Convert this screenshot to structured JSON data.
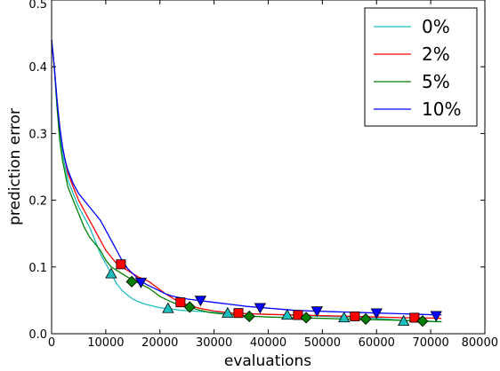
{
  "chart_data": {
    "type": "line",
    "xlabel": "evaluations",
    "ylabel": "prediction error",
    "xlim": [
      0,
      80000
    ],
    "ylim": [
      0.0,
      0.5
    ],
    "x_ticks": [
      0,
      10000,
      20000,
      30000,
      40000,
      50000,
      60000,
      70000,
      80000
    ],
    "x_tick_labels": [
      "0",
      "10000",
      "20000",
      "30000",
      "40000",
      "50000",
      "60000",
      "70000",
      "80000"
    ],
    "y_ticks": [
      0.0,
      0.1,
      0.2,
      0.3,
      0.4,
      0.5
    ],
    "y_tick_labels": [
      "0.0",
      "0.1",
      "0.2",
      "0.3",
      "0.4",
      "0.5"
    ],
    "grid": false,
    "legend_position": "top-right",
    "series": [
      {
        "name": "0%",
        "color": "#1cbfbf",
        "marker": "triangle-up",
        "points": [
          [
            0,
            0.44
          ],
          [
            500,
            0.4
          ],
          [
            1000,
            0.34
          ],
          [
            1500,
            0.3
          ],
          [
            2000,
            0.27
          ],
          [
            2500,
            0.25
          ],
          [
            3000,
            0.23
          ],
          [
            4000,
            0.21
          ],
          [
            5000,
            0.19
          ],
          [
            6000,
            0.175
          ],
          [
            7000,
            0.16
          ],
          [
            8000,
            0.14
          ],
          [
            9000,
            0.12
          ],
          [
            10000,
            0.105
          ],
          [
            11000,
            0.09
          ],
          [
            12000,
            0.075
          ],
          [
            13000,
            0.065
          ],
          [
            14000,
            0.058
          ],
          [
            15000,
            0.052
          ],
          [
            16000,
            0.048
          ],
          [
            17000,
            0.045
          ],
          [
            18000,
            0.043
          ],
          [
            19000,
            0.041
          ],
          [
            20000,
            0.039
          ],
          [
            21000,
            0.038
          ],
          [
            22000,
            0.037
          ],
          [
            24000,
            0.035
          ],
          [
            26000,
            0.034
          ],
          [
            28000,
            0.033
          ],
          [
            30000,
            0.032
          ],
          [
            33000,
            0.031
          ],
          [
            36000,
            0.03
          ],
          [
            40000,
            0.029
          ],
          [
            43000,
            0.028
          ],
          [
            46000,
            0.027
          ],
          [
            50000,
            0.026
          ],
          [
            54000,
            0.025
          ],
          [
            58000,
            0.024
          ],
          [
            62000,
            0.022
          ],
          [
            65000,
            0.02
          ],
          [
            68000,
            0.019
          ],
          [
            71000,
            0.018
          ],
          [
            72000,
            0.018
          ]
        ],
        "markers": [
          [
            11000,
            0.09
          ],
          [
            21500,
            0.038
          ],
          [
            32500,
            0.031
          ],
          [
            43500,
            0.028
          ],
          [
            54000,
            0.024
          ],
          [
            65000,
            0.019
          ]
        ]
      },
      {
        "name": "2%",
        "color": "#ff0000",
        "marker": "square",
        "points": [
          [
            0,
            0.44
          ],
          [
            500,
            0.4
          ],
          [
            1000,
            0.35
          ],
          [
            1500,
            0.31
          ],
          [
            2000,
            0.28
          ],
          [
            2500,
            0.26
          ],
          [
            3000,
            0.24
          ],
          [
            4000,
            0.22
          ],
          [
            5000,
            0.2
          ],
          [
            6000,
            0.185
          ],
          [
            7000,
            0.17
          ],
          [
            8000,
            0.155
          ],
          [
            9000,
            0.14
          ],
          [
            10000,
            0.125
          ],
          [
            11000,
            0.115
          ],
          [
            12000,
            0.105
          ],
          [
            13000,
            0.1
          ],
          [
            14000,
            0.095
          ],
          [
            15000,
            0.09
          ],
          [
            16000,
            0.085
          ],
          [
            17000,
            0.082
          ],
          [
            18000,
            0.078
          ],
          [
            19000,
            0.072
          ],
          [
            20000,
            0.066
          ],
          [
            21000,
            0.06
          ],
          [
            22000,
            0.055
          ],
          [
            23000,
            0.05
          ],
          [
            24000,
            0.046
          ],
          [
            26000,
            0.041
          ],
          [
            28000,
            0.037
          ],
          [
            30000,
            0.034
          ],
          [
            33000,
            0.031
          ],
          [
            36000,
            0.03
          ],
          [
            40000,
            0.029
          ],
          [
            45000,
            0.028
          ],
          [
            50000,
            0.027
          ],
          [
            55000,
            0.026
          ],
          [
            60000,
            0.025
          ],
          [
            65000,
            0.024
          ],
          [
            68000,
            0.024
          ],
          [
            72000,
            0.023
          ]
        ],
        "markers": [
          [
            12800,
            0.104
          ],
          [
            23800,
            0.047
          ],
          [
            34500,
            0.031
          ],
          [
            45500,
            0.028
          ],
          [
            56000,
            0.026
          ],
          [
            67000,
            0.024
          ]
        ]
      },
      {
        "name": "5%",
        "color": "#007f00",
        "marker": "diamond",
        "points": [
          [
            0,
            0.44
          ],
          [
            500,
            0.4
          ],
          [
            1000,
            0.34
          ],
          [
            1500,
            0.29
          ],
          [
            2000,
            0.26
          ],
          [
            2500,
            0.24
          ],
          [
            3000,
            0.22
          ],
          [
            4000,
            0.2
          ],
          [
            5000,
            0.18
          ],
          [
            6000,
            0.16
          ],
          [
            7000,
            0.145
          ],
          [
            8000,
            0.135
          ],
          [
            9000,
            0.125
          ],
          [
            10000,
            0.11
          ],
          [
            11000,
            0.1
          ],
          [
            12000,
            0.095
          ],
          [
            13000,
            0.09
          ],
          [
            14000,
            0.085
          ],
          [
            15000,
            0.08
          ],
          [
            16000,
            0.076
          ],
          [
            17000,
            0.072
          ],
          [
            18000,
            0.068
          ],
          [
            19000,
            0.062
          ],
          [
            20000,
            0.056
          ],
          [
            21000,
            0.052
          ],
          [
            22000,
            0.048
          ],
          [
            23000,
            0.045
          ],
          [
            24000,
            0.043
          ],
          [
            25000,
            0.041
          ],
          [
            27000,
            0.036
          ],
          [
            29000,
            0.032
          ],
          [
            31000,
            0.03
          ],
          [
            34000,
            0.028
          ],
          [
            37000,
            0.026
          ],
          [
            40000,
            0.025
          ],
          [
            45000,
            0.024
          ],
          [
            50000,
            0.023
          ],
          [
            55000,
            0.022
          ],
          [
            60000,
            0.021
          ],
          [
            65000,
            0.02
          ],
          [
            68000,
            0.019
          ],
          [
            72000,
            0.018
          ]
        ],
        "markers": [
          [
            14800,
            0.078
          ],
          [
            25500,
            0.04
          ],
          [
            36500,
            0.026
          ],
          [
            47000,
            0.024
          ],
          [
            58000,
            0.022
          ],
          [
            68500,
            0.019
          ]
        ]
      },
      {
        "name": "10%",
        "color": "#0000ff",
        "marker": "triangle-down",
        "points": [
          [
            0,
            0.44
          ],
          [
            500,
            0.4
          ],
          [
            1000,
            0.35
          ],
          [
            1500,
            0.31
          ],
          [
            2000,
            0.28
          ],
          [
            2500,
            0.26
          ],
          [
            3000,
            0.245
          ],
          [
            4000,
            0.225
          ],
          [
            5000,
            0.21
          ],
          [
            6000,
            0.2
          ],
          [
            7000,
            0.19
          ],
          [
            8000,
            0.18
          ],
          [
            9000,
            0.17
          ],
          [
            10000,
            0.155
          ],
          [
            11000,
            0.14
          ],
          [
            12000,
            0.125
          ],
          [
            13000,
            0.11
          ],
          [
            14000,
            0.098
          ],
          [
            15000,
            0.09
          ],
          [
            16000,
            0.082
          ],
          [
            17000,
            0.076
          ],
          [
            18000,
            0.072
          ],
          [
            19000,
            0.068
          ],
          [
            20000,
            0.064
          ],
          [
            21000,
            0.06
          ],
          [
            22000,
            0.057
          ],
          [
            23000,
            0.055
          ],
          [
            25000,
            0.052
          ],
          [
            27000,
            0.05
          ],
          [
            30000,
            0.047
          ],
          [
            33000,
            0.044
          ],
          [
            36000,
            0.041
          ],
          [
            39000,
            0.039
          ],
          [
            42000,
            0.037
          ],
          [
            45000,
            0.035
          ],
          [
            48000,
            0.034
          ],
          [
            52000,
            0.033
          ],
          [
            56000,
            0.032
          ],
          [
            60000,
            0.031
          ],
          [
            64000,
            0.03
          ],
          [
            68000,
            0.029
          ],
          [
            72000,
            0.028
          ]
        ],
        "markers": [
          [
            16500,
            0.077
          ],
          [
            27500,
            0.05
          ],
          [
            38500,
            0.039
          ],
          [
            49000,
            0.034
          ],
          [
            60000,
            0.031
          ],
          [
            71000,
            0.027
          ]
        ]
      }
    ]
  }
}
